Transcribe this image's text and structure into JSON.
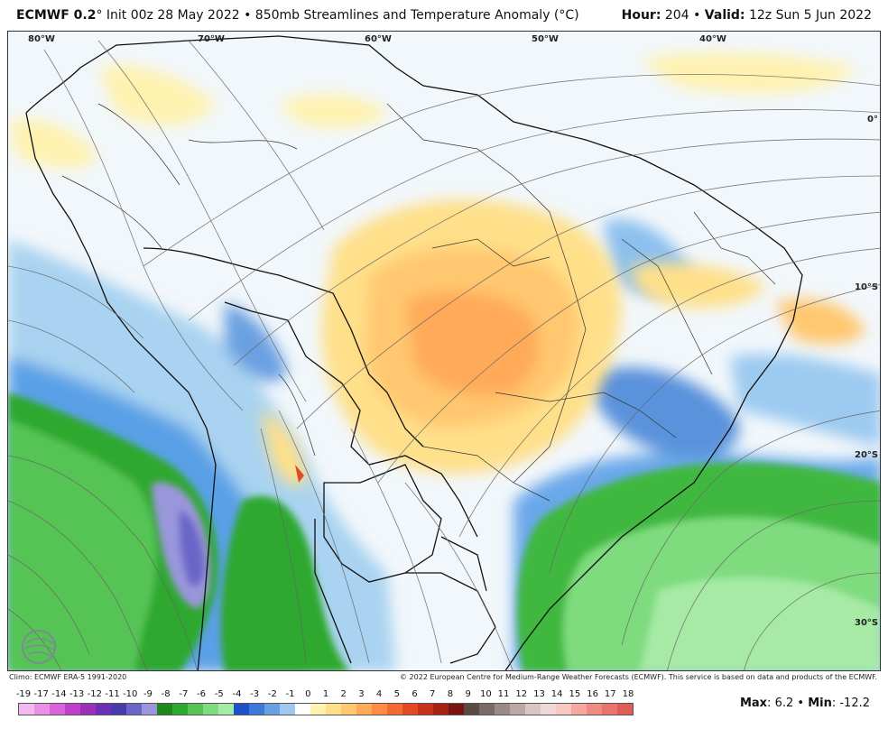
{
  "header": {
    "model": "ECMWF 0.2",
    "init_text": "° Init 00z 28 May 2022 • 850mb Streamlines and Temperature Anomaly (°C)",
    "hour_label": "Hour:",
    "hour_value": "204",
    "valid_label": "Valid:",
    "valid_value": "12z Sun 5 Jun 2022"
  },
  "map": {
    "longitude_labels": [
      "80°W",
      "70°W",
      "60°W",
      "50°W",
      "40°W"
    ],
    "latitude_labels": [
      "0°",
      "10°S",
      "20°S",
      "30°S"
    ],
    "logo_text": "WEATHERBELL"
  },
  "footer": {
    "climo": "Climo: ECMWF ERA-5 1991-2020",
    "copyright": "© 2022 European Centre for Medium-Range Weather Forecasts (ECMWF). This service is based on data and products of the ECMWF."
  },
  "colorbar": {
    "labels": [
      "-19",
      "-17",
      "-14",
      "-13",
      "-12",
      "-11",
      "-10",
      "-9",
      "-8",
      "-7",
      "-6",
      "-5",
      "-4",
      "-3",
      "-2",
      "-1",
      "0",
      "1",
      "2",
      "3",
      "4",
      "5",
      "6",
      "7",
      "8",
      "9",
      "10",
      "11",
      "12",
      "13",
      "14",
      "15",
      "16",
      "17",
      "18"
    ],
    "colors": [
      "#f2b8f0",
      "#e890e6",
      "#d866d8",
      "#c040c8",
      "#9a30b8",
      "#6a2fb5",
      "#4a3aa8",
      "#6a66c8",
      "#9a96dc",
      "#1b8a1b",
      "#2fa82f",
      "#55c455",
      "#7edb7e",
      "#a6eaa6",
      "#1e50c8",
      "#3d7ad8",
      "#6aa0e2",
      "#a0c8ee",
      "#ffffff",
      "#fff2b0",
      "#ffe08a",
      "#ffc870",
      "#ffaa58",
      "#ff8c44",
      "#f26b34",
      "#e24a26",
      "#c8321c",
      "#a82214",
      "#7a1410",
      "#5a4a46",
      "#7a6a66",
      "#9a8a86",
      "#bba8a4",
      "#d8c6c2",
      "#f0d8d4",
      "#f8c8c0",
      "#f4a8a0",
      "#ee8c84",
      "#e8746c",
      "#e05c56"
    ],
    "max_label": "Max",
    "max_value": "6.2",
    "min_label": "Min",
    "min_value": "-12.2"
  }
}
